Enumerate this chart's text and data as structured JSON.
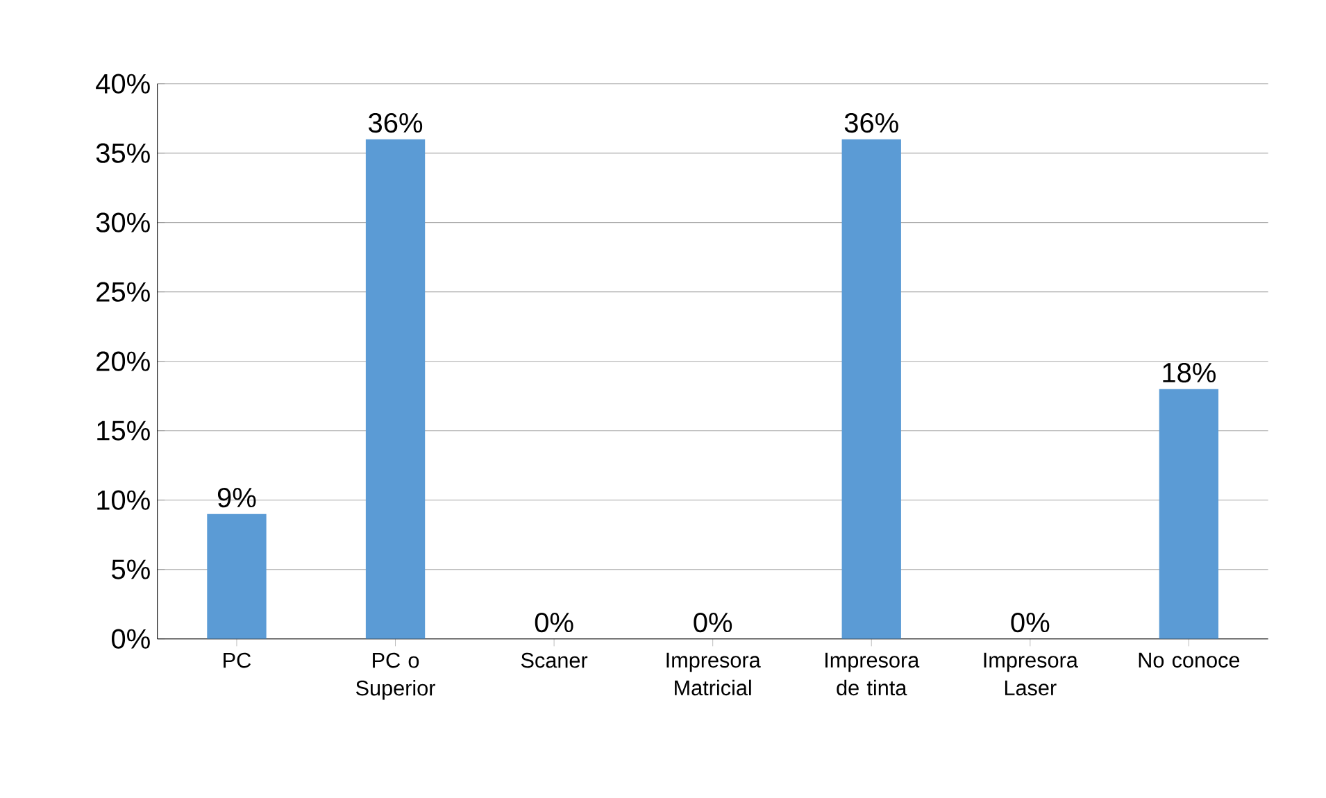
{
  "chart_data": {
    "type": "bar",
    "categories": [
      "PC",
      "PC o Superior",
      "Scaner",
      "Impresora Matricial",
      "Impresora de tinta",
      "Impresora Laser",
      "No conoce"
    ],
    "values": [
      9,
      36,
      0,
      0,
      36,
      0,
      18
    ],
    "value_labels": [
      "9%",
      "36%",
      "0%",
      "0%",
      "36%",
      "0%",
      "18%"
    ],
    "color": "#5b9bd5",
    "ylim": [
      0,
      40
    ],
    "yticks": [
      {
        "value": 0,
        "label": "0%"
      },
      {
        "value": 5,
        "label": "5%"
      },
      {
        "value": 10,
        "label": "10%"
      },
      {
        "value": 15,
        "label": "15%"
      },
      {
        "value": 20,
        "label": "20%"
      },
      {
        "value": 25,
        "label": "25%"
      },
      {
        "value": 30,
        "label": "30%"
      },
      {
        "value": 35,
        "label": "35%"
      },
      {
        "value": 40,
        "label": "40%"
      }
    ],
    "grid": "y"
  }
}
